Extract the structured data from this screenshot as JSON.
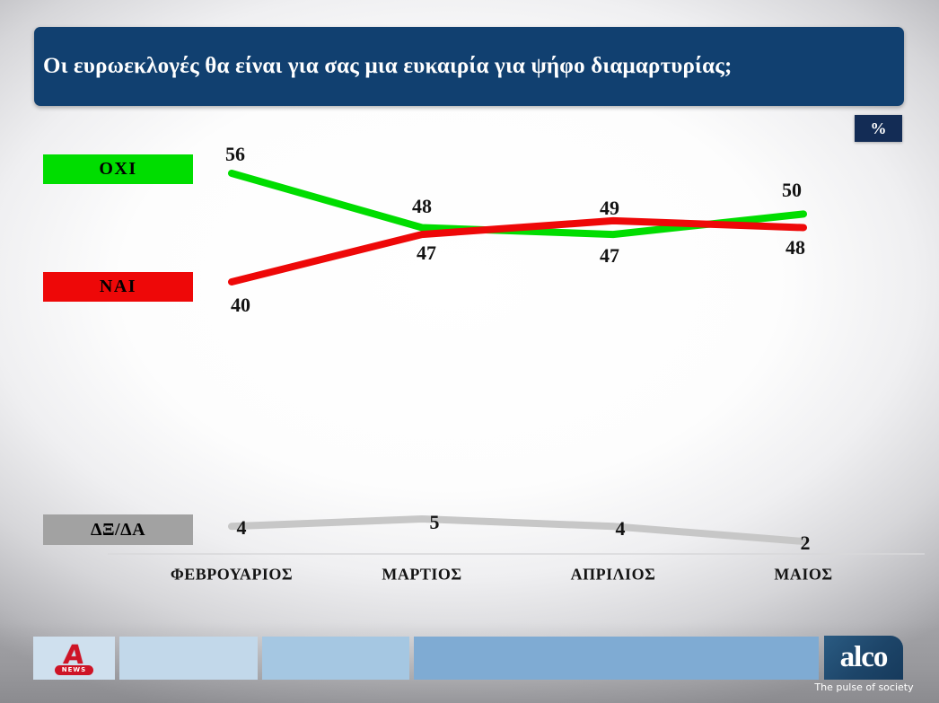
{
  "title": "Οι ευρωεκλογές θα είναι για σας μια ευκαιρία για ψήφο διαμαρτυρίας;",
  "percent_badge": "%",
  "chart_data": {
    "type": "line",
    "categories": [
      "ΦΕΒΡΟΥΑΡΙΟΣ",
      "ΜΑΡΤΙΟΣ",
      "ΑΠΡΙΛΙΟΣ",
      "ΜΑΙΟΣ"
    ],
    "series": [
      {
        "name": "ΟΧΙ",
        "color": "#00dd00",
        "values": [
          56,
          48,
          47,
          50
        ]
      },
      {
        "name": "ΝΑΙ",
        "color": "#ee0808",
        "values": [
          40,
          47,
          49,
          48
        ]
      },
      {
        "name": "ΔΞ/ΔΑ",
        "color": "#c7c7c7",
        "values": [
          4,
          5,
          4,
          2
        ]
      }
    ],
    "unit": "%",
    "title": "Οι ευρωεκλογές θα είναι για σας μια ευκαιρία για ψήφο διαμαρτυρίας;",
    "xlabel": "",
    "ylabel": "",
    "ylim": [
      0,
      60
    ],
    "grid": false,
    "legend_position": "left",
    "data_labels": true
  },
  "legend": {
    "box_colors": [
      "#00dd00",
      "#ee0808",
      "#a2a2a2"
    ]
  },
  "footer": {
    "block_colors": [
      "#cfe0ee",
      "#c2d8ea",
      "#a5c7e2",
      "#7fabd3"
    ],
    "alpha_letter": "A",
    "alpha_news": "NEWS",
    "alco_text": "alco",
    "alco_tagline": "The pulse of society"
  },
  "colors": {
    "title_bar_navy": "#114070",
    "percent_badge_navy": "#132c55",
    "alco_navy": "#1d4569",
    "alpha_red": "#ce1426",
    "axis_line": "#d8d8da"
  }
}
